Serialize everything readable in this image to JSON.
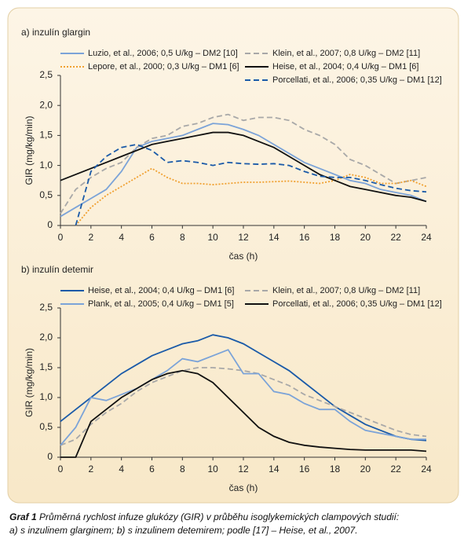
{
  "chart_data": [
    {
      "type": "line",
      "title": "a) inzulín glargin",
      "xlabel": "čas (h)",
      "ylabel": "GIR (mg/kg/min)",
      "x": [
        0,
        1,
        2,
        3,
        4,
        5,
        6,
        7,
        8,
        9,
        10,
        11,
        12,
        13,
        14,
        15,
        16,
        17,
        18,
        19,
        20,
        21,
        22,
        23,
        24
      ],
      "xlim": [
        0,
        24
      ],
      "xticks": [
        0,
        2,
        4,
        6,
        8,
        10,
        12,
        14,
        16,
        18,
        20,
        22,
        24
      ],
      "ylim": [
        0,
        2.5
      ],
      "yticks": [
        0,
        {
          "value": 0.5,
          "label": "0,5"
        },
        {
          "value": 1,
          "label": "1,0"
        },
        {
          "value": 1.5,
          "label": "1,5"
        },
        {
          "value": 2,
          "label": "2,0"
        },
        {
          "value": 2.5,
          "label": "2,5"
        }
      ],
      "series": [
        {
          "name": "Luzio, et al., 2006; 0,5 U/kg – DM2 [10]",
          "color": "#7ba3d8",
          "dash": "solid",
          "values": [
            0.15,
            0.3,
            0.45,
            0.6,
            0.9,
            1.3,
            1.4,
            1.45,
            1.5,
            1.6,
            1.7,
            1.68,
            1.6,
            1.5,
            1.35,
            1.2,
            1.05,
            0.95,
            0.85,
            0.75,
            0.7,
            0.6,
            0.55,
            0.5,
            0.4
          ]
        },
        {
          "name": "Klein, et al., 2007; 0,8 U/kg – DM2 [11]",
          "color": "#a8a8a8",
          "dash": "dashed",
          "values": [
            0.2,
            0.6,
            0.8,
            0.95,
            1.05,
            1.3,
            1.45,
            1.5,
            1.65,
            1.7,
            1.8,
            1.85,
            1.75,
            1.8,
            1.8,
            1.75,
            1.6,
            1.5,
            1.35,
            1.1,
            1.0,
            0.85,
            0.7,
            0.75,
            0.8
          ]
        },
        {
          "name": "Lepore, et al., 2000; 0,3 U/kg – DM1 [6]",
          "color": "#f0a030",
          "dash": "dotted",
          "values": [
            null,
            0,
            0.3,
            0.5,
            0.65,
            0.8,
            0.95,
            0.8,
            0.7,
            0.7,
            0.68,
            0.7,
            0.72,
            0.72,
            0.73,
            0.74,
            0.72,
            0.7,
            0.75,
            0.85,
            0.8,
            0.7,
            0.7,
            0.75,
            0.65
          ]
        },
        {
          "name": "Heise, et al., 2004; 0,4 U/kg – DM1 [6]",
          "color": "#111111",
          "dash": "solid",
          "values": [
            0.75,
            0.85,
            0.95,
            1.05,
            1.15,
            1.25,
            1.35,
            1.4,
            1.45,
            1.5,
            1.55,
            1.55,
            1.5,
            1.4,
            1.3,
            1.15,
            1.0,
            0.85,
            0.75,
            0.65,
            0.6,
            0.55,
            0.5,
            0.47,
            0.4
          ]
        },
        {
          "name": "Porcellati, et al., 2006; 0,35 U/kg – DM1 [12]",
          "color": "#1a5aa8",
          "dash": "dashed",
          "values": [
            null,
            0,
            0.9,
            1.15,
            1.3,
            1.35,
            1.25,
            1.05,
            1.08,
            1.05,
            1.0,
            1.05,
            1.03,
            1.02,
            1.03,
            1.0,
            0.9,
            0.82,
            0.8,
            0.8,
            0.75,
            0.68,
            0.62,
            0.58,
            0.56
          ]
        }
      ]
    },
    {
      "type": "line",
      "title": "b) inzulín detemir",
      "xlabel": "čas (h)",
      "ylabel": "GIR (mg/kg/min)",
      "x": [
        0,
        1,
        2,
        3,
        4,
        5,
        6,
        7,
        8,
        9,
        10,
        11,
        12,
        13,
        14,
        15,
        16,
        17,
        18,
        19,
        20,
        21,
        22,
        23,
        24
      ],
      "xlim": [
        0,
        24
      ],
      "xticks": [
        0,
        2,
        4,
        6,
        8,
        10,
        12,
        14,
        16,
        18,
        20,
        22,
        24
      ],
      "ylim": [
        0,
        2.5
      ],
      "yticks": [
        0,
        {
          "value": 0.5,
          "label": "0,5"
        },
        {
          "value": 1,
          "label": "1,0"
        },
        {
          "value": 1.5,
          "label": "1,5"
        },
        {
          "value": 2,
          "label": "2,0"
        },
        {
          "value": 2.5,
          "label": "2,5"
        }
      ],
      "series": [
        {
          "name": "Heise, et al., 2004; 0,4 U/kg – DM1 [6]",
          "color": "#1a5aa8",
          "dash": "solid",
          "values": [
            0.6,
            0.8,
            1.0,
            1.2,
            1.4,
            1.55,
            1.7,
            1.8,
            1.9,
            1.95,
            2.05,
            2.0,
            1.9,
            1.75,
            1.6,
            1.45,
            1.25,
            1.05,
            0.85,
            0.7,
            0.55,
            0.45,
            0.35,
            0.3,
            0.28
          ]
        },
        {
          "name": "Klein, et al., 2007; 0,8 U/kg – DM2 [11]",
          "color": "#a8a8a8",
          "dash": "dashed",
          "values": [
            0.2,
            0.3,
            0.55,
            0.75,
            0.9,
            1.1,
            1.25,
            1.35,
            1.45,
            1.5,
            1.5,
            1.48,
            1.45,
            1.4,
            1.3,
            1.2,
            1.05,
            0.95,
            0.85,
            0.75,
            0.65,
            0.55,
            0.45,
            0.38,
            0.35
          ]
        },
        {
          "name": "Plank, et al., 2005; 0,4 U/kg – DM1 [5]",
          "color": "#7ba3d8",
          "dash": "solid",
          "values": [
            0.2,
            0.5,
            1.0,
            0.95,
            1.05,
            1.15,
            1.3,
            1.45,
            1.65,
            1.6,
            1.7,
            1.8,
            1.4,
            1.4,
            1.1,
            1.05,
            0.9,
            0.8,
            0.8,
            0.6,
            0.45,
            0.4,
            0.35,
            0.3,
            0.3
          ]
        },
        {
          "name": "Porcellati, et al., 2006; 0,35 U/kg – DM1 [12]",
          "color": "#111111",
          "dash": "solid",
          "values": [
            0,
            0,
            0.6,
            0.8,
            1.0,
            1.15,
            1.3,
            1.4,
            1.45,
            1.4,
            1.25,
            1.0,
            0.75,
            0.5,
            0.35,
            0.25,
            0.2,
            0.17,
            0.15,
            0.13,
            0.12,
            0.12,
            0.12,
            0.12,
            0.1
          ]
        }
      ]
    }
  ],
  "caption": {
    "label": "Graf 1",
    "lines": [
      "Průměrná rychlost infuze glukózy (GIR) v průběhu isoglykemických clampových studií:",
      "a) s inzulinem glarginem; b) s inzulinem detemirem; podle [17] – Heise, et al., 2007."
    ]
  }
}
